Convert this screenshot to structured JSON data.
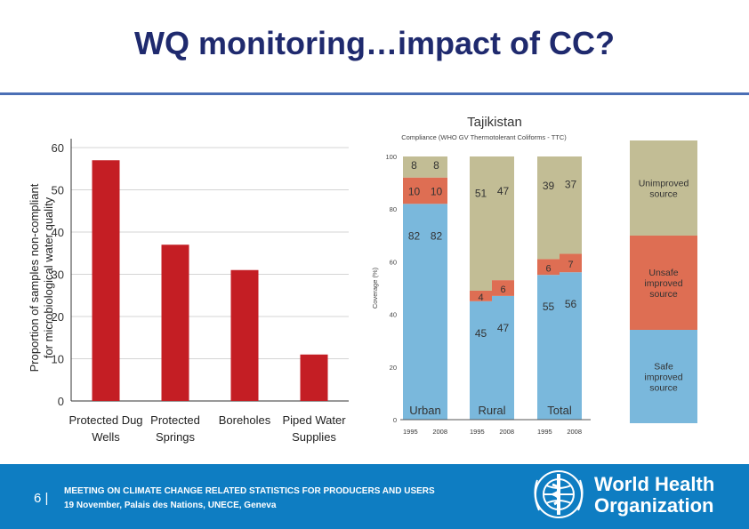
{
  "slide": {
    "title": "WQ monitoring…impact of CC?",
    "page_number": "6 |",
    "footer_line1": "MEETING ON CLIMATE CHANGE RELATED STATISTICS FOR PRODUCERS AND USERS",
    "footer_line2": "19 November, Palais des Nations, UNECE, Geneva",
    "org_name_line1": "World Health",
    "org_name_line2": "Organization",
    "colors": {
      "title": "#1f2a6e",
      "rule": "#4b6fb5",
      "footer": "#0e7dc2"
    }
  },
  "chart_data": [
    {
      "type": "bar",
      "title": "",
      "ylabel_line1": "Proportion of samples non-compliant",
      "ylabel_line2": "for microbiological water quality",
      "categories": [
        [
          "Protected Dug",
          "Wells"
        ],
        [
          "Protected",
          "Springs"
        ],
        [
          "Boreholes"
        ],
        [
          "Piped Water",
          "Supplies"
        ]
      ],
      "values": [
        57,
        37,
        31,
        11
      ],
      "yticks": [
        "0",
        "10",
        "20",
        "30",
        "40",
        "50",
        "60"
      ],
      "ylim": [
        0,
        60
      ],
      "grid": true,
      "color": "#c41e24"
    },
    {
      "type": "bar",
      "stacked": true,
      "title": "Tajikistan",
      "subtitle": "Compliance (WHO GV Thermotolerant Coliforms - TTC)",
      "ylabel": "Coverage (%)",
      "yticks": [
        "0",
        "20",
        "40",
        "60",
        "80",
        "100"
      ],
      "ylim": [
        0,
        100
      ],
      "groups": [
        {
          "label": "Urban",
          "years": [
            "1995",
            "2008"
          ],
          "safe": [
            82,
            82
          ],
          "unsafe": [
            10,
            10
          ],
          "unimproved": [
            8,
            8
          ]
        },
        {
          "label": "Rural",
          "years": [
            "1995",
            "2008"
          ],
          "safe": [
            45,
            47
          ],
          "unsafe": [
            4,
            6
          ],
          "unimproved": [
            51,
            47
          ]
        },
        {
          "label": "Total",
          "years": [
            "1995",
            "2008"
          ],
          "safe": [
            55,
            56
          ],
          "unsafe": [
            6,
            7
          ],
          "unimproved": [
            39,
            37
          ]
        }
      ],
      "legend": [
        {
          "key": "unimproved",
          "label": [
            "Unimproved",
            "source"
          ],
          "color": "#c2bd95"
        },
        {
          "key": "unsafe",
          "label": [
            "Unsafe",
            "improved",
            "source"
          ],
          "color": "#de6e53"
        },
        {
          "key": "safe",
          "label": [
            "Safe",
            "improved",
            "source"
          ],
          "color": "#7ab8dc"
        }
      ]
    }
  ]
}
